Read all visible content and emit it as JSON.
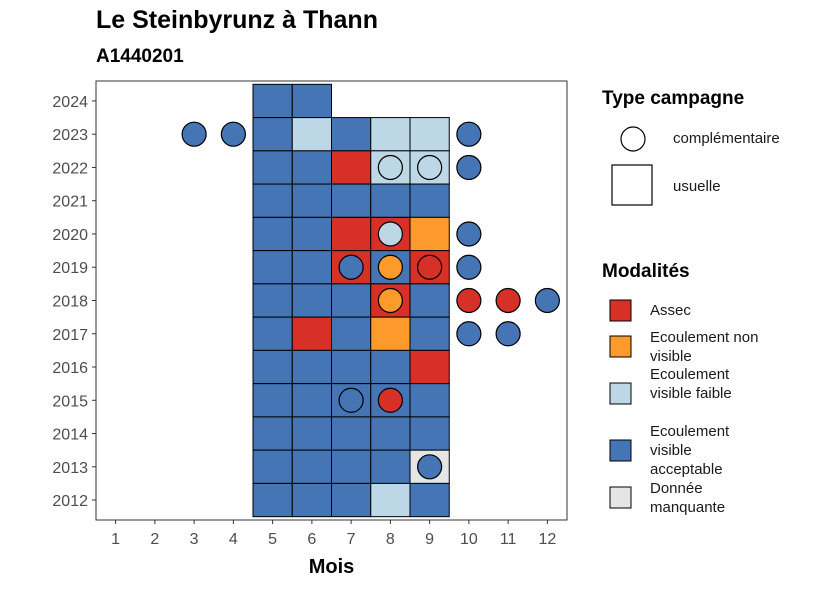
{
  "chart_data": {
    "type": "heatmap",
    "title": "Le Steinbyrunz à Thann",
    "subtitle": "A1440201",
    "xlabel": "Mois",
    "ylabel": "",
    "x_ticks": [
      1,
      2,
      3,
      4,
      5,
      6,
      7,
      8,
      9,
      10,
      11,
      12
    ],
    "y_ticks": [
      2012,
      2013,
      2014,
      2015,
      2016,
      2017,
      2018,
      2019,
      2020,
      2021,
      2022,
      2023,
      2024
    ],
    "xlim": [
      0.5,
      12.5
    ],
    "ylim": [
      2011.4,
      2024.6
    ],
    "grid": false,
    "legend_position": "right",
    "legend_shape": {
      "title": "Type campagne",
      "entries": [
        {
          "label": "complémentaire",
          "shape": "circle"
        },
        {
          "label": "usuelle",
          "shape": "square"
        }
      ]
    },
    "legend_fill": {
      "title": "Modalités",
      "entries": [
        {
          "key": "assec",
          "label": "Assec",
          "color": "#d73027"
        },
        {
          "key": "nv",
          "label": "Ecoulement non visible",
          "color": "#fd9a2c"
        },
        {
          "key": "vf",
          "label": "Ecoulement visible faible",
          "color": "#bdd7e7"
        },
        {
          "key": "va",
          "label": "Ecoulement visible acceptable",
          "color": "#4575b4"
        },
        {
          "key": "dm",
          "label": "Donnée manquante",
          "color": "#e5e5e5"
        }
      ]
    },
    "usuelle": [
      {
        "year": 2024,
        "month": 5,
        "value": "va"
      },
      {
        "year": 2024,
        "month": 6,
        "value": "va"
      },
      {
        "year": 2023,
        "month": 5,
        "value": "va"
      },
      {
        "year": 2023,
        "month": 6,
        "value": "vf"
      },
      {
        "year": 2023,
        "month": 7,
        "value": "va"
      },
      {
        "year": 2023,
        "month": 8,
        "value": "vf"
      },
      {
        "year": 2023,
        "month": 9,
        "value": "vf"
      },
      {
        "year": 2022,
        "month": 5,
        "value": "va"
      },
      {
        "year": 2022,
        "month": 6,
        "value": "va"
      },
      {
        "year": 2022,
        "month": 7,
        "value": "assec"
      },
      {
        "year": 2022,
        "month": 8,
        "value": "vf"
      },
      {
        "year": 2022,
        "month": 9,
        "value": "vf"
      },
      {
        "year": 2021,
        "month": 5,
        "value": "va"
      },
      {
        "year": 2021,
        "month": 6,
        "value": "va"
      },
      {
        "year": 2021,
        "month": 7,
        "value": "va"
      },
      {
        "year": 2021,
        "month": 8,
        "value": "va"
      },
      {
        "year": 2021,
        "month": 9,
        "value": "va"
      },
      {
        "year": 2020,
        "month": 5,
        "value": "va"
      },
      {
        "year": 2020,
        "month": 6,
        "value": "va"
      },
      {
        "year": 2020,
        "month": 7,
        "value": "assec"
      },
      {
        "year": 2020,
        "month": 8,
        "value": "assec"
      },
      {
        "year": 2020,
        "month": 9,
        "value": "nv"
      },
      {
        "year": 2019,
        "month": 5,
        "value": "va"
      },
      {
        "year": 2019,
        "month": 6,
        "value": "va"
      },
      {
        "year": 2019,
        "month": 7,
        "value": "assec"
      },
      {
        "year": 2019,
        "month": 8,
        "value": "va"
      },
      {
        "year": 2019,
        "month": 9,
        "value": "assec"
      },
      {
        "year": 2018,
        "month": 5,
        "value": "va"
      },
      {
        "year": 2018,
        "month": 6,
        "value": "va"
      },
      {
        "year": 2018,
        "month": 7,
        "value": "va"
      },
      {
        "year": 2018,
        "month": 8,
        "value": "assec"
      },
      {
        "year": 2018,
        "month": 9,
        "value": "va"
      },
      {
        "year": 2017,
        "month": 5,
        "value": "va"
      },
      {
        "year": 2017,
        "month": 6,
        "value": "assec"
      },
      {
        "year": 2017,
        "month": 7,
        "value": "va"
      },
      {
        "year": 2017,
        "month": 8,
        "value": "nv"
      },
      {
        "year": 2017,
        "month": 9,
        "value": "va"
      },
      {
        "year": 2016,
        "month": 5,
        "value": "va"
      },
      {
        "year": 2016,
        "month": 6,
        "value": "va"
      },
      {
        "year": 2016,
        "month": 7,
        "value": "va"
      },
      {
        "year": 2016,
        "month": 8,
        "value": "va"
      },
      {
        "year": 2016,
        "month": 9,
        "value": "assec"
      },
      {
        "year": 2015,
        "month": 5,
        "value": "va"
      },
      {
        "year": 2015,
        "month": 6,
        "value": "va"
      },
      {
        "year": 2015,
        "month": 7,
        "value": "va"
      },
      {
        "year": 2015,
        "month": 8,
        "value": "va"
      },
      {
        "year": 2015,
        "month": 9,
        "value": "va"
      },
      {
        "year": 2014,
        "month": 5,
        "value": "va"
      },
      {
        "year": 2014,
        "month": 6,
        "value": "va"
      },
      {
        "year": 2014,
        "month": 7,
        "value": "va"
      },
      {
        "year": 2014,
        "month": 8,
        "value": "va"
      },
      {
        "year": 2014,
        "month": 9,
        "value": "va"
      },
      {
        "year": 2013,
        "month": 5,
        "value": "va"
      },
      {
        "year": 2013,
        "month": 6,
        "value": "va"
      },
      {
        "year": 2013,
        "month": 7,
        "value": "va"
      },
      {
        "year": 2013,
        "month": 8,
        "value": "va"
      },
      {
        "year": 2013,
        "month": 9,
        "value": "dm"
      },
      {
        "year": 2012,
        "month": 5,
        "value": "va"
      },
      {
        "year": 2012,
        "month": 6,
        "value": "va"
      },
      {
        "year": 2012,
        "month": 7,
        "value": "va"
      },
      {
        "year": 2012,
        "month": 8,
        "value": "vf"
      },
      {
        "year": 2012,
        "month": 9,
        "value": "va"
      }
    ],
    "complementaire": [
      {
        "year": 2023,
        "month": 3,
        "value": "va"
      },
      {
        "year": 2023,
        "month": 4,
        "value": "va"
      },
      {
        "year": 2023,
        "month": 10,
        "value": "va"
      },
      {
        "year": 2022,
        "month": 8,
        "value": "vf"
      },
      {
        "year": 2022,
        "month": 9,
        "value": "vf"
      },
      {
        "year": 2022,
        "month": 10,
        "value": "va"
      },
      {
        "year": 2020,
        "month": 8,
        "value": "vf"
      },
      {
        "year": 2020,
        "month": 10,
        "value": "va"
      },
      {
        "year": 2019,
        "month": 7,
        "value": "va"
      },
      {
        "year": 2019,
        "month": 8,
        "value": "nv"
      },
      {
        "year": 2019,
        "month": 9,
        "value": "assec"
      },
      {
        "year": 2019,
        "month": 10,
        "value": "va"
      },
      {
        "year": 2018,
        "month": 8,
        "value": "nv"
      },
      {
        "year": 2018,
        "month": 10,
        "value": "assec"
      },
      {
        "year": 2018,
        "month": 11,
        "value": "assec"
      },
      {
        "year": 2018,
        "month": 12,
        "value": "va"
      },
      {
        "year": 2017,
        "month": 10,
        "value": "va"
      },
      {
        "year": 2017,
        "month": 11,
        "value": "va"
      },
      {
        "year": 2015,
        "month": 7,
        "value": "va"
      },
      {
        "year": 2015,
        "month": 8,
        "value": "assec"
      },
      {
        "year": 2013,
        "month": 9,
        "value": "va"
      }
    ]
  }
}
